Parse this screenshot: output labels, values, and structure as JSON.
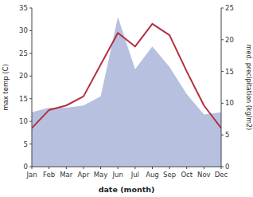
{
  "chart_data": {
    "type": "line",
    "categories": [
      "Jan",
      "Feb",
      "Mar",
      "Apr",
      "May",
      "Jun",
      "Jul",
      "Aug",
      "Sep",
      "Oct",
      "Nov",
      "Dec"
    ],
    "series": [
      {
        "type": "area",
        "color": "#b8c0e0",
        "values": [
          12.0,
          13.0,
          13.0,
          13.5,
          15.5,
          33.0,
          21.5,
          26.5,
          22.0,
          16.0,
          11.5,
          12.0
        ]
      },
      {
        "type": "line",
        "color": "#b03040",
        "values": [
          8.5,
          12.5,
          13.5,
          15.5,
          22.5,
          29.5,
          26.5,
          31.5,
          29.0,
          21.0,
          13.5,
          8.5
        ]
      }
    ],
    "xlabel": "date (month)",
    "ylabel": "max temp (C)",
    "y2label": "med. precipitation (kg/m2)",
    "ylim": [
      0,
      35
    ],
    "yticks": [
      0,
      5,
      10,
      15,
      20,
      25,
      30,
      35
    ],
    "y2lim": [
      0,
      25
    ],
    "y2ticks": [
      0,
      5,
      10,
      15,
      20,
      25
    ],
    "grid": false
  }
}
